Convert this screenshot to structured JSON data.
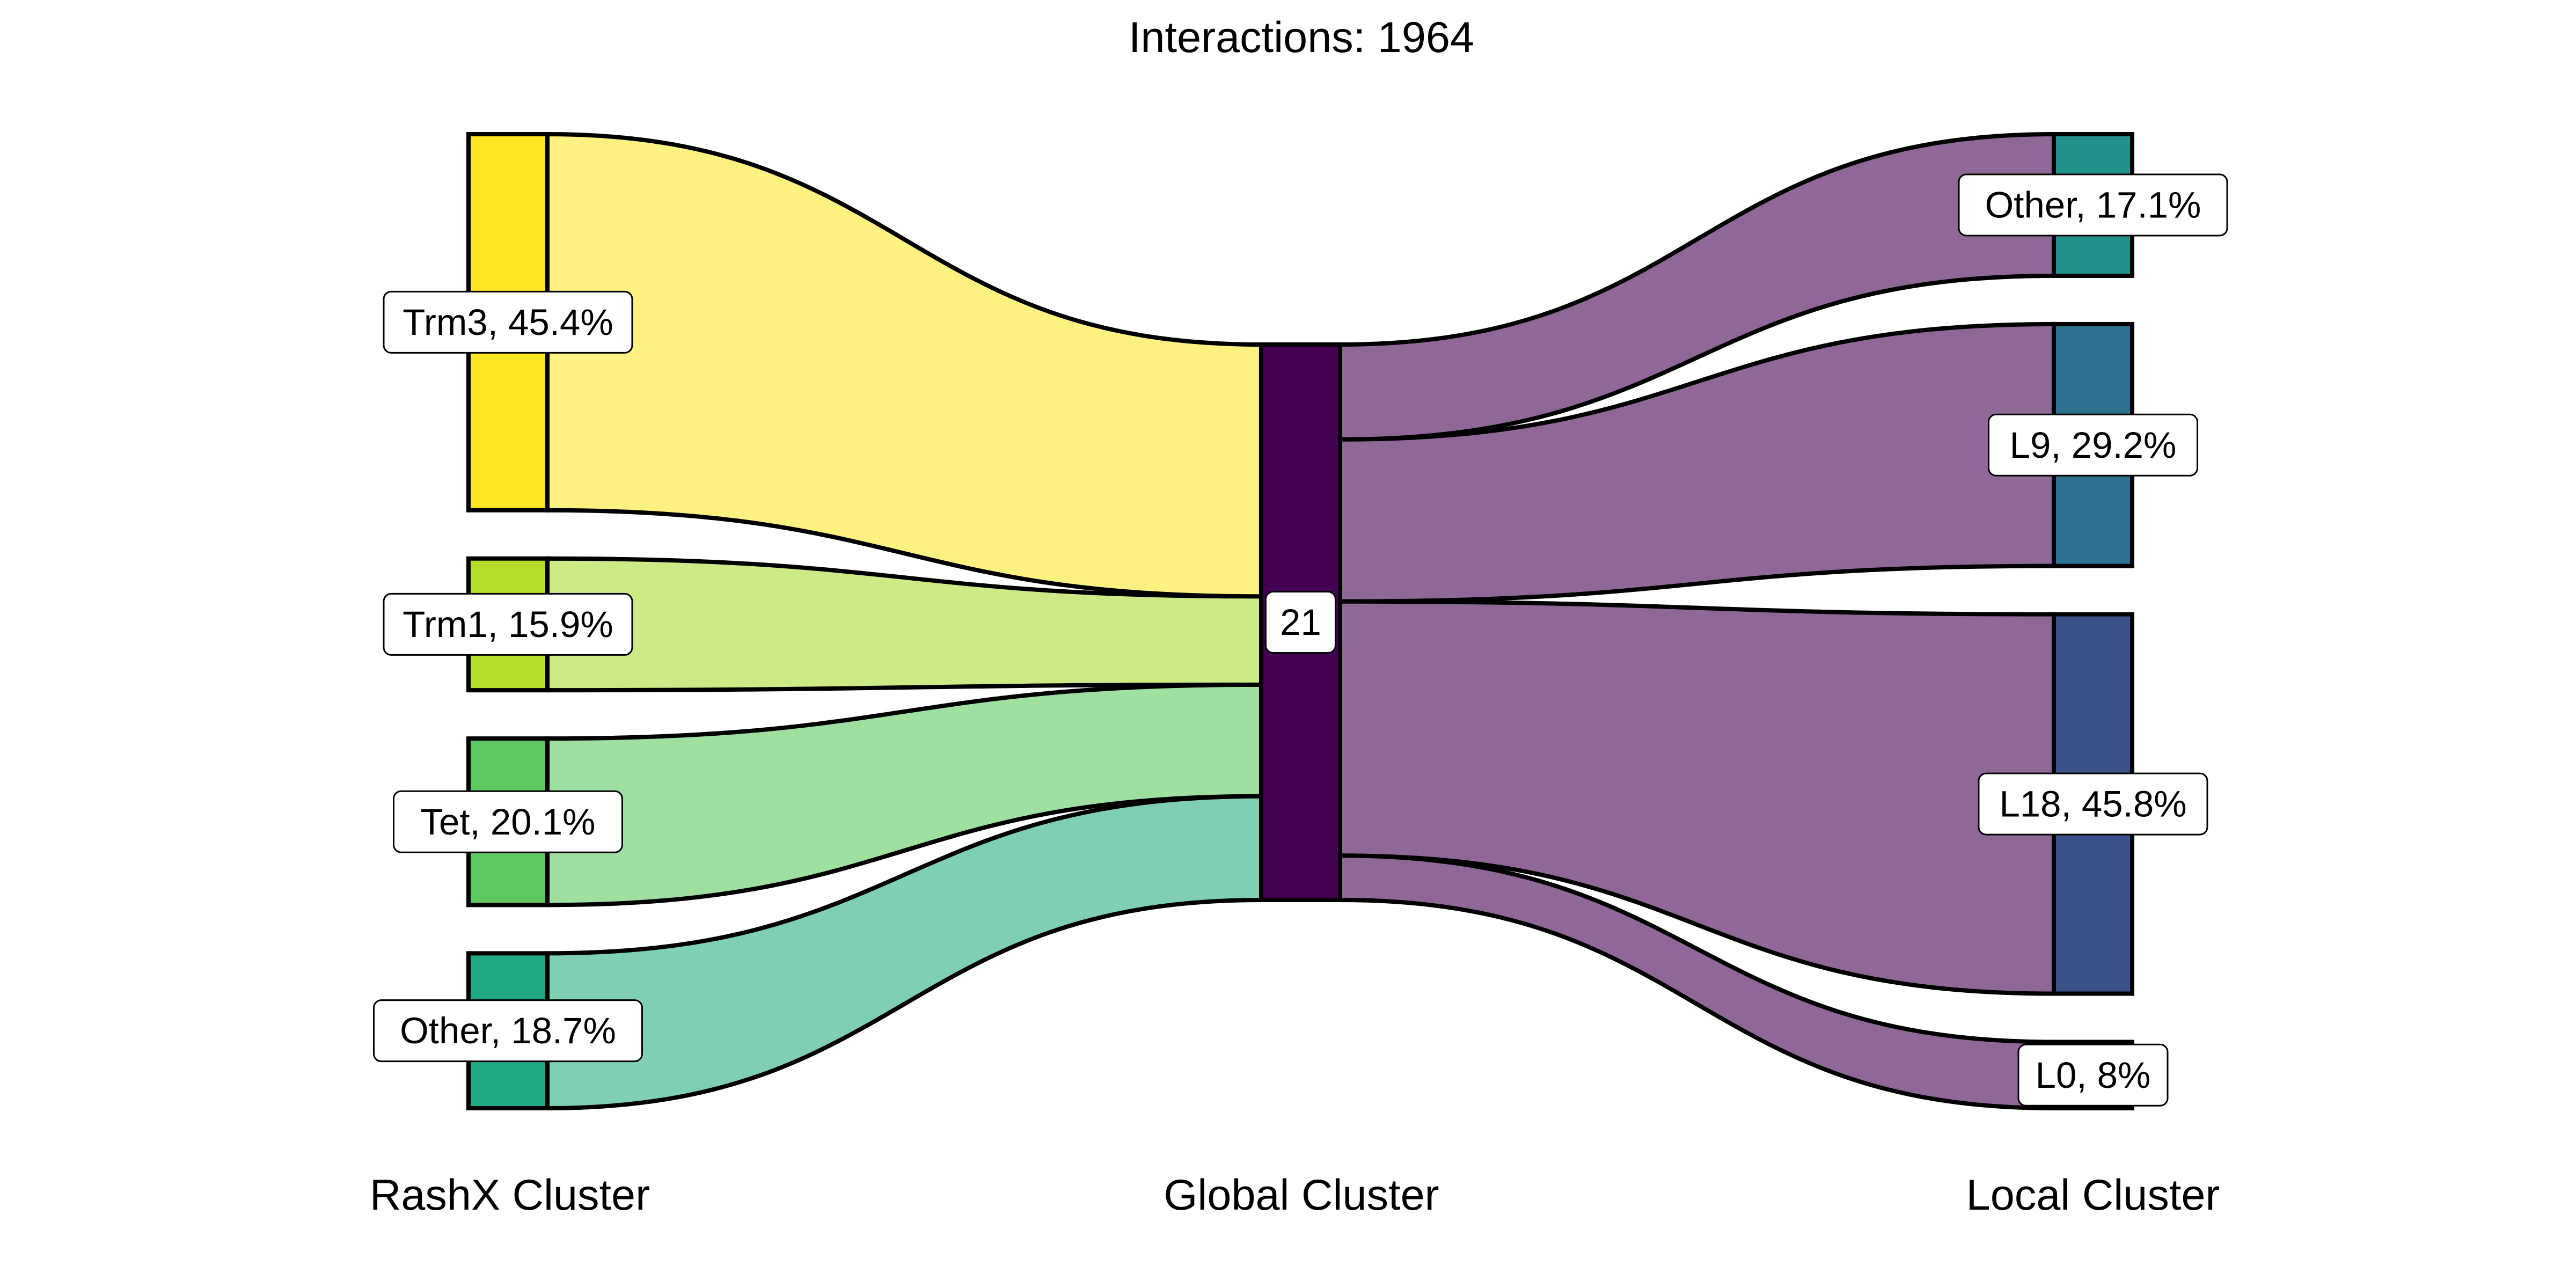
{
  "title": "Interactions: 1964",
  "columns": {
    "left": "RashX Cluster",
    "middle": "Global Cluster",
    "right": "Local Cluster"
  },
  "chart_data": {
    "type": "sankey",
    "total_interactions": 1964,
    "left_nodes": [
      {
        "name": "Trm3",
        "label": "Trm3, 45.4%",
        "percent": 45.4,
        "color": "#fde725",
        "flow_color": "#fdf181"
      },
      {
        "name": "Trm1",
        "label": "Trm1, 15.9%",
        "percent": 15.9,
        "color": "#b5de2b",
        "flow_color": "#cceb87"
      },
      {
        "name": "Tet",
        "label": "Tet, 20.1%",
        "percent": 20.1,
        "color": "#5ec962",
        "flow_color": "#9fe0a0"
      },
      {
        "name": "Other",
        "label": "Other, 18.7%",
        "percent": 18.7,
        "color": "#21a885",
        "flow_color": "#7fcfb4"
      }
    ],
    "middle_node": {
      "name": "21",
      "label": "21",
      "color": "#440154",
      "flow_color": "#8f6898"
    },
    "right_nodes": [
      {
        "name": "Other",
        "label": "Other, 17.1%",
        "percent": 17.1,
        "color": "#21918c"
      },
      {
        "name": "L9",
        "label": "L9, 29.2%",
        "percent": 29.2,
        "color": "#2c728e"
      },
      {
        "name": "L18",
        "label": "L18, 45.8%",
        "percent": 45.8,
        "color": "#3b528b"
      },
      {
        "name": "L0",
        "label": "L0, 8%",
        "percent": 8,
        "color": "#ffffff"
      }
    ]
  }
}
